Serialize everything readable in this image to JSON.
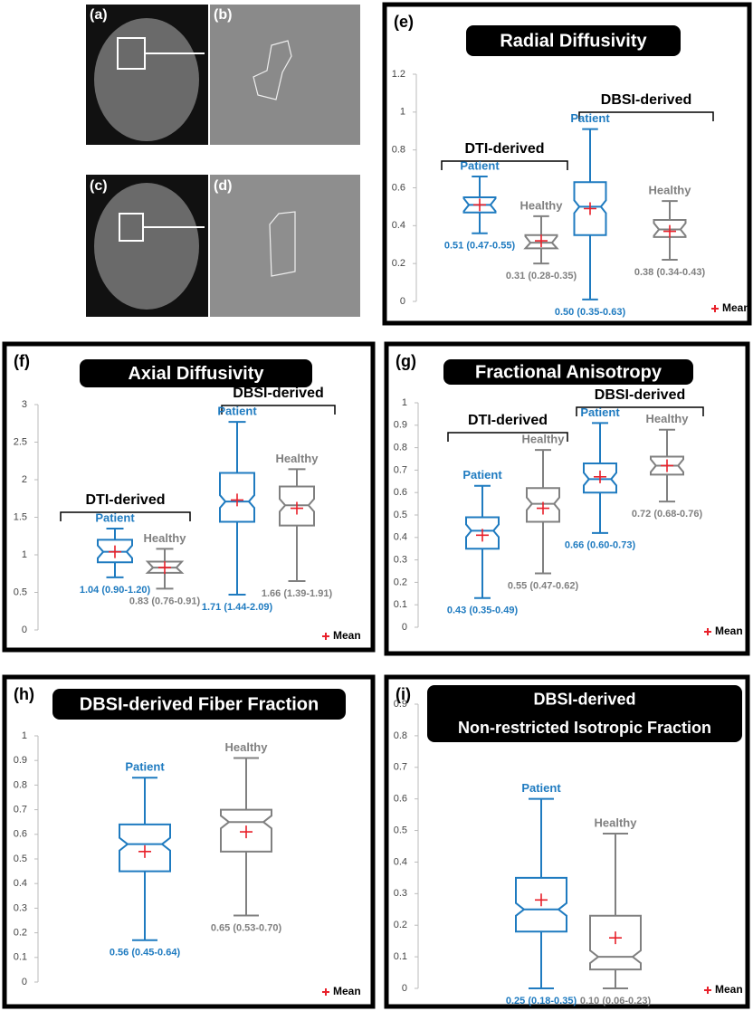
{
  "images": [
    {
      "label": "(a)"
    },
    {
      "label": "(b)"
    },
    {
      "label": "(c)"
    },
    {
      "label": "(d)"
    }
  ],
  "chart_data": [
    {
      "type": "box",
      "panel": "(e)",
      "title_lines": [
        "Radial Diffusivity"
      ],
      "ylim": [
        0,
        1.2
      ],
      "yticks": [
        0,
        0.2,
        0.4,
        0.6,
        0.8,
        1,
        1.2
      ],
      "legend": "Mean",
      "mean_color": "#e8202a",
      "groups": [
        {
          "name": "DTI-derived",
          "series": [
            {
              "name": "Patient",
              "color": "#1f7bc0",
              "min": 0.36,
              "q1": 0.47,
              "median": 0.51,
              "q3": 0.55,
              "max": 0.66,
              "mean": 0.51,
              "value_label": "0.51 (0.47-0.55)"
            },
            {
              "name": "Healthy",
              "color": "#808080",
              "min": 0.2,
              "q1": 0.28,
              "median": 0.31,
              "q3": 0.35,
              "max": 0.45,
              "mean": 0.32,
              "value_label": "0.31 (0.28-0.35)"
            }
          ]
        },
        {
          "name": "DBSI-derived",
          "series": [
            {
              "name": "Patient",
              "color": "#1f7bc0",
              "min": 0.01,
              "q1": 0.35,
              "median": 0.5,
              "q3": 0.63,
              "max": 0.91,
              "mean": 0.49,
              "value_label": "0.50 (0.35-0.63)"
            },
            {
              "name": "Healthy",
              "color": "#808080",
              "min": 0.22,
              "q1": 0.34,
              "median": 0.38,
              "q3": 0.43,
              "max": 0.53,
              "mean": 0.37,
              "value_label": "0.38 (0.34-0.43)"
            }
          ]
        }
      ]
    },
    {
      "type": "box",
      "panel": "(f)",
      "title_lines": [
        "Axial Diffusivity"
      ],
      "ylim": [
        0,
        3
      ],
      "yticks": [
        0,
        0.5,
        1,
        1.5,
        2,
        2.5,
        3
      ],
      "legend": "Mean",
      "mean_color": "#e8202a",
      "groups": [
        {
          "name": "DTI-derived",
          "series": [
            {
              "name": "Patient",
              "color": "#1f7bc0",
              "min": 0.7,
              "q1": 0.9,
              "median": 1.04,
              "q3": 1.2,
              "max": 1.35,
              "mean": 1.04,
              "value_label": "1.04 (0.90-1.20)"
            },
            {
              "name": "Healthy",
              "color": "#808080",
              "min": 0.55,
              "q1": 0.76,
              "median": 0.83,
              "q3": 0.91,
              "max": 1.08,
              "mean": 0.83,
              "value_label": "0.83 (0.76-0.91)"
            }
          ]
        },
        {
          "name": "DBSI-derived",
          "series": [
            {
              "name": "Patient",
              "color": "#1f7bc0",
              "min": 0.47,
              "q1": 1.44,
              "median": 1.71,
              "q3": 2.09,
              "max": 2.77,
              "mean": 1.73,
              "value_label": "1.71 (1.44-2.09)"
            },
            {
              "name": "Healthy",
              "color": "#808080",
              "min": 0.65,
              "q1": 1.39,
              "median": 1.66,
              "q3": 1.91,
              "max": 2.14,
              "mean": 1.62,
              "value_label": "1.66 (1.39-1.91)"
            }
          ]
        }
      ]
    },
    {
      "type": "box",
      "panel": "(g)",
      "title_lines": [
        "Fractional Anisotropy"
      ],
      "ylim": [
        0,
        1
      ],
      "yticks": [
        0,
        0.1,
        0.2,
        0.3,
        0.4,
        0.5,
        0.6,
        0.7,
        0.8,
        0.9,
        1
      ],
      "legend": "Mean",
      "mean_color": "#e8202a",
      "groups": [
        {
          "name": "DTI-derived",
          "series": [
            {
              "name": "Patient",
              "color": "#1f7bc0",
              "min": 0.13,
              "q1": 0.35,
              "median": 0.43,
              "q3": 0.49,
              "max": 0.63,
              "mean": 0.41,
              "value_label": "0.43 (0.35-0.49)"
            },
            {
              "name": "Healthy",
              "color": "#808080",
              "min": 0.24,
              "q1": 0.47,
              "median": 0.55,
              "q3": 0.62,
              "max": 0.79,
              "mean": 0.53,
              "value_label": "0.55 (0.47-0.62)"
            }
          ]
        },
        {
          "name": "DBSI-derived",
          "series": [
            {
              "name": "Patient",
              "color": "#1f7bc0",
              "min": 0.42,
              "q1": 0.6,
              "median": 0.66,
              "q3": 0.73,
              "max": 0.91,
              "mean": 0.67,
              "value_label": "0.66 (0.60-0.73)"
            },
            {
              "name": "Healthy",
              "color": "#808080",
              "min": 0.56,
              "q1": 0.68,
              "median": 0.72,
              "q3": 0.76,
              "max": 0.88,
              "mean": 0.72,
              "value_label": "0.72 (0.68-0.76)"
            }
          ]
        }
      ]
    },
    {
      "type": "box",
      "panel": "(h)",
      "title_lines": [
        "DBSI-derived Fiber Fraction"
      ],
      "ylim": [
        0,
        1
      ],
      "yticks": [
        0,
        0.1,
        0.2,
        0.3,
        0.4,
        0.5,
        0.6,
        0.7,
        0.8,
        0.9,
        1
      ],
      "legend": "Mean",
      "mean_color": "#e8202a",
      "groups": [
        {
          "series": [
            {
              "name": "Patient",
              "color": "#1f7bc0",
              "min": 0.17,
              "q1": 0.45,
              "median": 0.56,
              "q3": 0.64,
              "max": 0.83,
              "mean": 0.53,
              "value_label": "0.56 (0.45-0.64)"
            },
            {
              "name": "Healthy",
              "color": "#808080",
              "min": 0.27,
              "q1": 0.53,
              "median": 0.65,
              "q3": 0.7,
              "max": 0.91,
              "mean": 0.61,
              "value_label": "0.65 (0.53-0.70)"
            }
          ]
        }
      ]
    },
    {
      "type": "box",
      "panel": "(i)",
      "title_lines": [
        "DBSI-derived",
        "Non-restricted Isotropic Fraction"
      ],
      "ylim": [
        0,
        0.9
      ],
      "yticks": [
        0,
        0.1,
        0.2,
        0.3,
        0.4,
        0.5,
        0.6,
        0.7,
        0.8,
        0.9
      ],
      "legend": "Mean",
      "mean_color": "#e8202a",
      "groups": [
        {
          "series": [
            {
              "name": "Patient",
              "color": "#1f7bc0",
              "min": 0,
              "q1": 0.18,
              "median": 0.25,
              "q3": 0.35,
              "max": 0.6,
              "mean": 0.28,
              "value_label": "0.25 (0.18-0.35)"
            },
            {
              "name": "Healthy",
              "color": "#808080",
              "min": 0,
              "q1": 0.06,
              "median": 0.1,
              "q3": 0.23,
              "max": 0.49,
              "mean": 0.16,
              "value_label": "0.10 (0.06-0.23)"
            }
          ]
        }
      ]
    }
  ]
}
